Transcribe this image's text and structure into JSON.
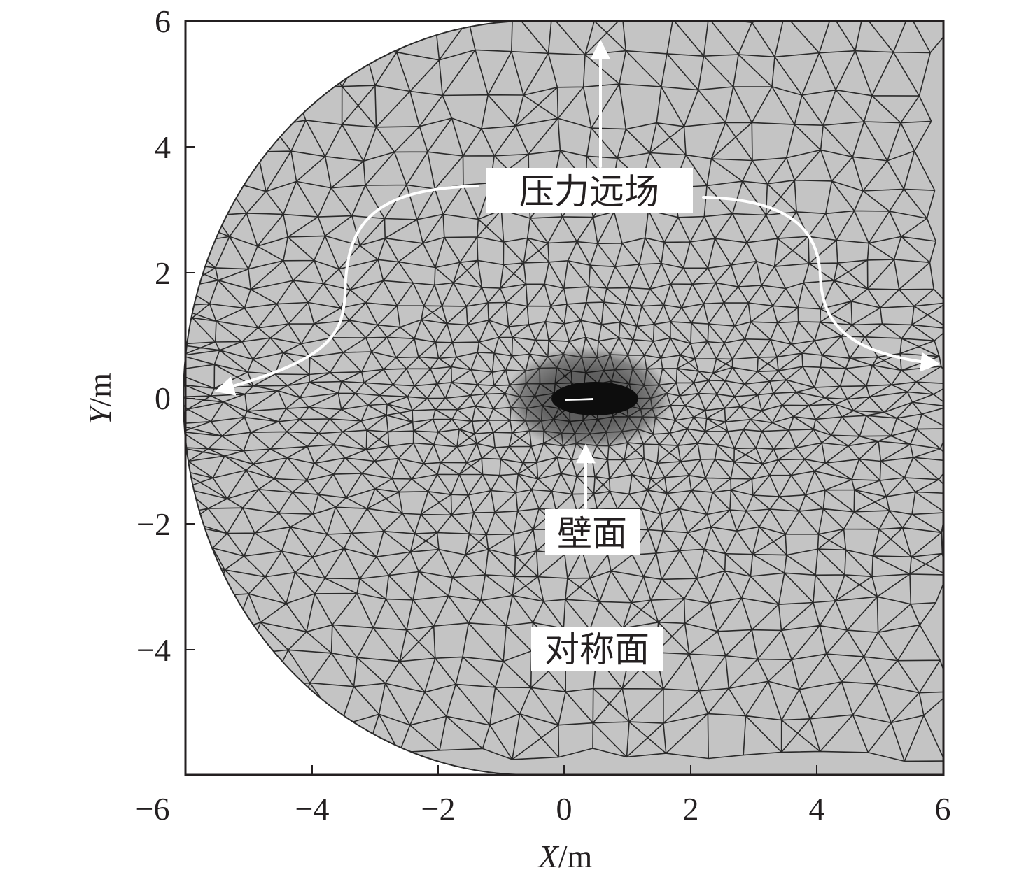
{
  "figure": {
    "x_axis": {
      "label_italic": "X",
      "label_unit": "/m",
      "range": [
        -6,
        6
      ],
      "ticks": [
        "−6",
        "−4",
        "−2",
        "0",
        "2",
        "4",
        "6"
      ]
    },
    "y_axis": {
      "label_italic": "Y",
      "label_unit": "/m",
      "range": [
        -6,
        6
      ],
      "ticks": [
        "6",
        "4",
        "2",
        "0",
        "−2",
        "−4"
      ]
    },
    "labels": {
      "pressure_far_field": "压力远场",
      "wall": "壁面",
      "symmetry_plane": "对称面"
    },
    "colors": {
      "mesh_fill": "#c4c4c4",
      "mesh_line": "#2a2a2a",
      "dense_core": "#0d0d0d",
      "arrow": "#ffffff",
      "axis": "#231f20"
    }
  }
}
